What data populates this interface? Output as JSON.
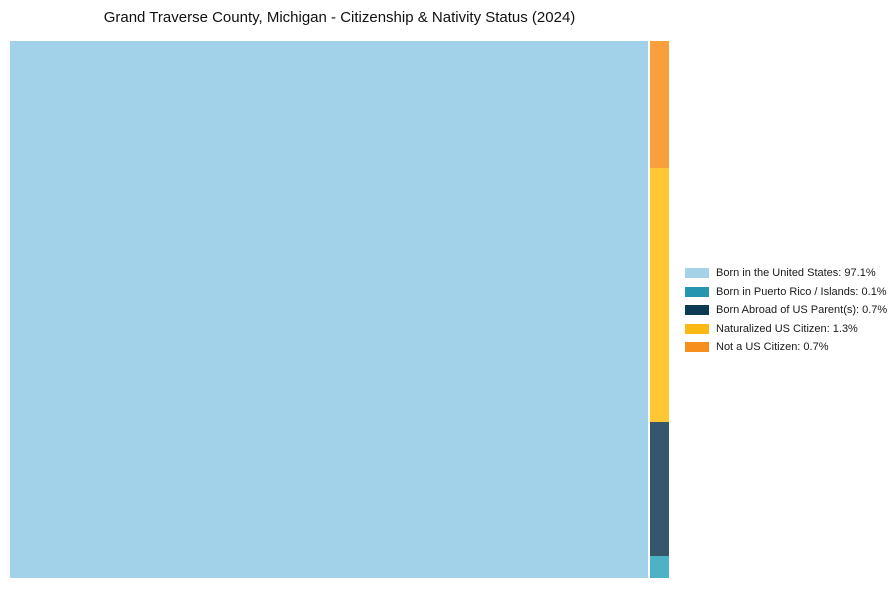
{
  "title": "Grand Traverse County, Michigan - Citizenship & Nativity Status (2024)",
  "chart_data": {
    "type": "treemap",
    "title": "Grand Traverse County, Michigan - Citizenship & Nativity Status (2024)",
    "categories": [
      "Born in the United States",
      "Born in Puerto Rico / Islands",
      "Born Abroad of US Parent(s)",
      "Naturalized US Citizen",
      "Not a US Citizen"
    ],
    "values": [
      97.1,
      0.1,
      0.7,
      1.3,
      0.7
    ],
    "unit": "%",
    "legend_position": "right",
    "grid": false,
    "layout_note": "Single large tile at left for 97.1%; narrow right column stacked top-to-bottom: Not a US Citizen, Naturalized US Citizen, Born Abroad of US Parent(s), Born in Puerto Rico / Islands"
  },
  "tiles": {
    "born_us": {
      "name": "Born in the United States",
      "value": "97.1%",
      "color": "#A2D2EA"
    },
    "puerto_rico": {
      "name": "Born in Puerto Rico / Islands",
      "value": "0.1%",
      "color": "#4DB2C6"
    },
    "born_abroad": {
      "name": "Born Abroad of US Parent(s)",
      "value": "0.7%",
      "color": "#35566B"
    },
    "naturalized": {
      "name": "Naturalized US Citizen",
      "value": "1.3%",
      "color": "#FFC734"
    },
    "not_citizen": {
      "name": "Not a US Citizen",
      "value": "0.7%",
      "color": "#F9A03C"
    }
  },
  "legend": {
    "items": [
      {
        "label": "Born in the United States: 97.1%",
        "color": "#A5D2E8"
      },
      {
        "label": "Born in Puerto Rico / Islands: 0.1%",
        "color": "#2596AD"
      },
      {
        "label": "Born Abroad of US Parent(s): 0.7%",
        "color": "#0C3A52"
      },
      {
        "label": "Naturalized US Citizen: 1.3%",
        "color": "#FDB913"
      },
      {
        "label": "Not a US Citizen: 0.7%",
        "color": "#F78F1E"
      }
    ]
  }
}
